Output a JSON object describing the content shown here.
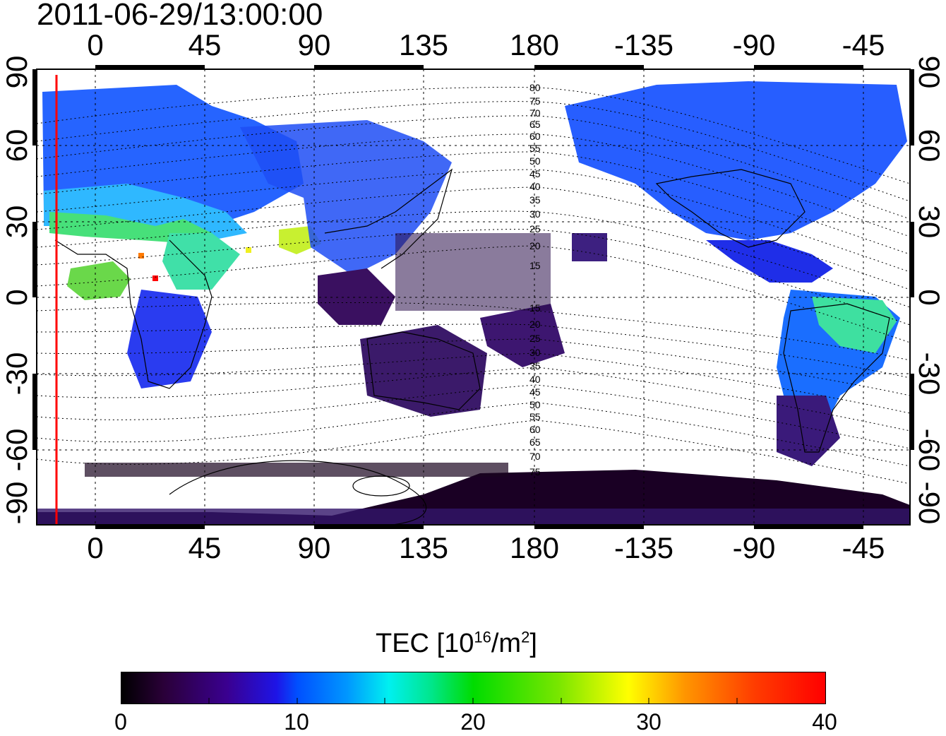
{
  "title": "2011-06-29/13:00:00",
  "map": {
    "x_ticks": [
      "0",
      "45",
      "90",
      "135",
      "180",
      "-135",
      "-90",
      "-45"
    ],
    "y_ticks_left": [
      "90",
      "60",
      "30",
      "0",
      "-30",
      "-60",
      "-90"
    ],
    "y_ticks_right": [
      "90",
      "60",
      "30",
      "0",
      "-30",
      "-60",
      "-90"
    ],
    "magnetic_lat_labels_north": [
      "80",
      "75",
      "70",
      "65",
      "60",
      "55",
      "50",
      "45",
      "40",
      "35",
      "30",
      "25",
      "20",
      "15"
    ],
    "magnetic_lat_labels_south": [
      "15",
      "20",
      "25",
      "30",
      "35",
      "40",
      "45",
      "50",
      "55",
      "60",
      "65",
      "70",
      "75"
    ],
    "terminator_color": "#ff0000"
  },
  "colorbar": {
    "title_main": "TEC  [10",
    "title_sup1": "16",
    "title_mid": "/m",
    "title_sup2": "2",
    "title_end": "]",
    "ticks": [
      "0",
      "10",
      "20",
      "30",
      "40"
    ],
    "range": [
      0,
      40
    ]
  }
}
